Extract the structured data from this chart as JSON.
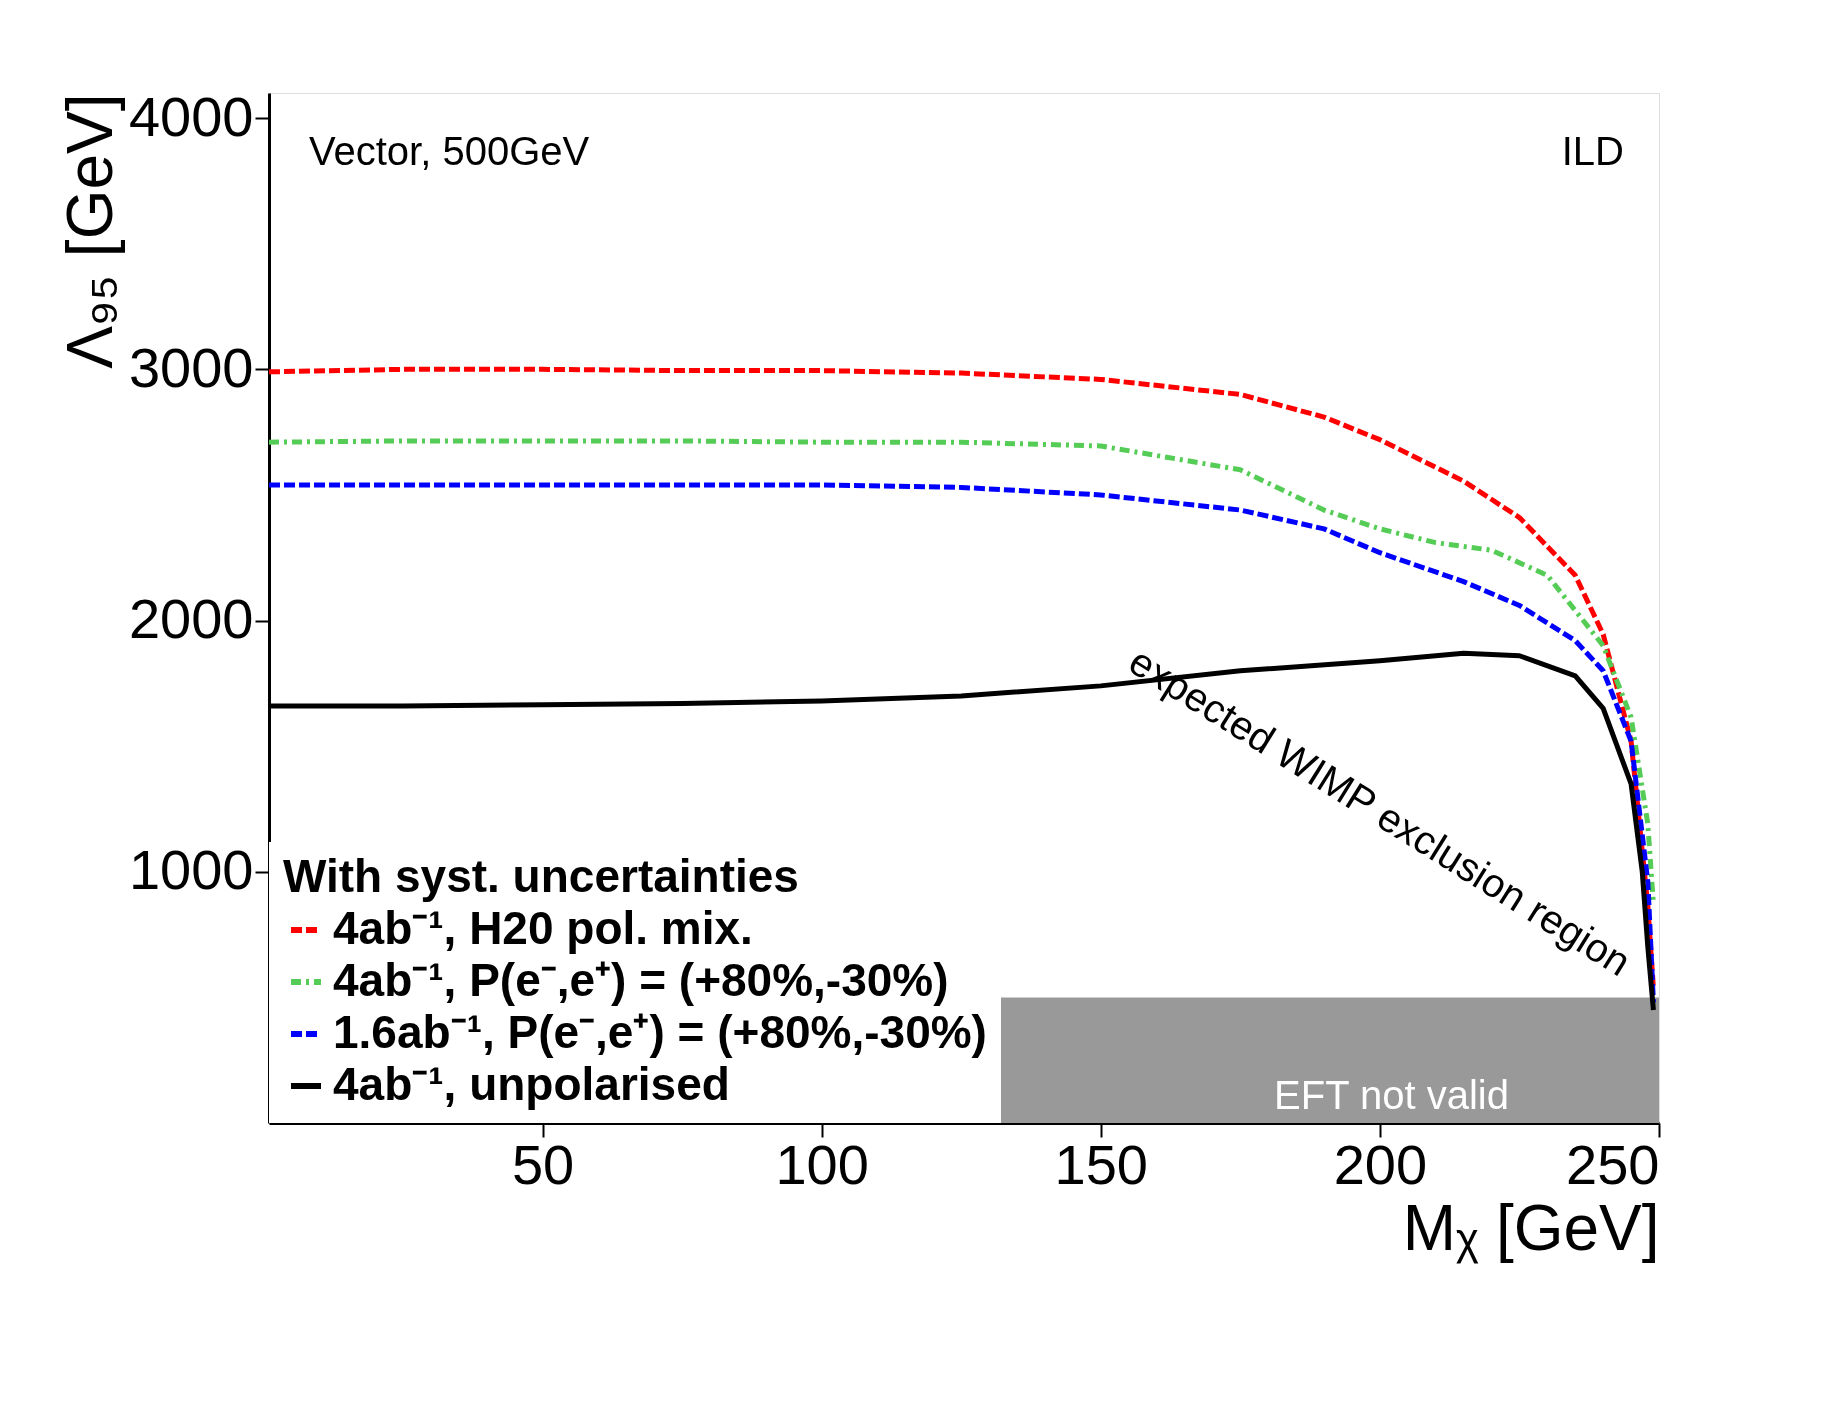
{
  "chart_data": {
    "type": "line",
    "xlabel": "Mᵪ [GeV]",
    "ylabel": "Λ₉₅ [GeV]",
    "legend_title": "With syst. uncertainties",
    "xlim": [
      1,
      250
    ],
    "ylim": [
      0,
      4100
    ],
    "xticks": [
      50,
      100,
      150,
      200,
      250
    ],
    "yticks": [
      1000,
      2000,
      3000,
      4000
    ],
    "grid": false,
    "legend": "bottom left",
    "marker": "none",
    "series": [
      {
        "name": "4ab⁻¹,    H20 pol. mix.",
        "color": "#ff0000",
        "line_style": "dashed",
        "x": [
          1,
          25,
          50,
          75,
          100,
          125,
          150,
          175,
          190,
          200,
          215,
          225,
          235,
          240,
          245,
          248,
          249
        ],
        "values": [
          2990,
          3000,
          3000,
          2995,
          2995,
          2985,
          2960,
          2900,
          2810,
          2720,
          2555,
          2410,
          2180,
          1945,
          1520,
          865,
          535
        ]
      },
      {
        "name": "4ab⁻¹,    P(e⁻,e⁺) = (+80%,-30%)",
        "color": "#55cc55",
        "line_style": "dotted",
        "x": [
          1,
          25,
          50,
          75,
          100,
          125,
          150,
          175,
          190,
          200,
          210,
          220,
          230,
          240,
          245,
          248,
          249
        ],
        "values": [
          2710,
          2715,
          2715,
          2715,
          2710,
          2710,
          2695,
          2600,
          2440,
          2365,
          2310,
          2280,
          2180,
          1900,
          1615,
          1190,
          870
        ]
      },
      {
        "name": "1.6ab⁻¹, P(e⁻,e⁺) = (+80%,-30%)",
        "color": "#0000ff",
        "line_style": "dashed",
        "x": [
          1,
          25,
          50,
          75,
          100,
          125,
          150,
          175,
          190,
          200,
          215,
          225,
          235,
          240,
          245,
          248,
          249
        ],
        "values": [
          2540,
          2540,
          2540,
          2540,
          2540,
          2530,
          2500,
          2440,
          2365,
          2270,
          2155,
          2060,
          1920,
          1800,
          1520,
          960,
          480
        ]
      },
      {
        "name": "4ab⁻¹,    unpolarised",
        "color": "#000000",
        "line_style": "solid",
        "x": [
          1,
          25,
          50,
          75,
          100,
          125,
          150,
          175,
          200,
          215,
          225,
          235,
          240,
          245,
          247,
          248,
          249
        ],
        "values": [
          1660,
          1660,
          1665,
          1670,
          1680,
          1700,
          1740,
          1800,
          1840,
          1870,
          1860,
          1780,
          1650,
          1350,
          1000,
          700,
          450
        ]
      }
    ],
    "bands": [
      {
        "axis": "y",
        "from": 0,
        "to": 500,
        "label": "EFT not valid",
        "color": "#999999"
      }
    ],
    "annotations": [
      "Vector, 500GeV",
      "ILD",
      "expected WIMP exclusion region"
    ]
  }
}
